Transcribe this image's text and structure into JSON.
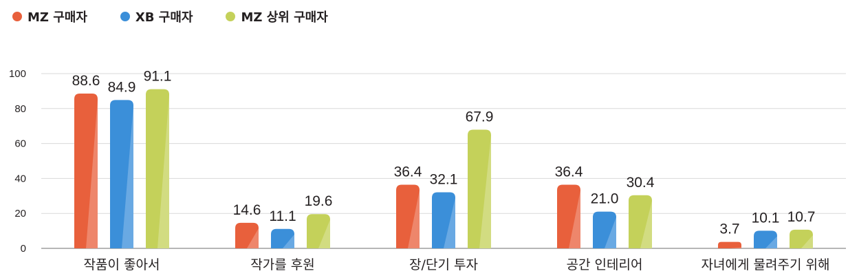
{
  "chart_data": {
    "type": "bar",
    "categories": [
      "작품이 좋아서",
      "작가를 후원",
      "장/단기 투자",
      "공간 인테리어",
      "자녀에게 물려주기 위해"
    ],
    "series": [
      {
        "name": "MZ 구매자",
        "color": "#e8603c",
        "values": [
          88.6,
          14.6,
          36.4,
          36.4,
          3.7
        ],
        "labels": [
          "88.6",
          "14.6",
          "36.4",
          "36.4",
          "3.7"
        ]
      },
      {
        "name": "XB 구매자",
        "color": "#3b8fd9",
        "values": [
          84.9,
          11.1,
          32.1,
          21.0,
          10.1
        ],
        "labels": [
          "84.9",
          "11.1",
          "32.1",
          "21.0",
          "10.1"
        ]
      },
      {
        "name": "MZ 상위 구매자",
        "color": "#c4d15a",
        "values": [
          91.1,
          19.6,
          67.9,
          30.4,
          10.7
        ],
        "labels": [
          "91.1",
          "19.6",
          "67.9",
          "30.4",
          "10.7"
        ]
      }
    ],
    "yticks": [
      "0",
      "20",
      "40",
      "60",
      "80",
      "100"
    ],
    "ylim": [
      0,
      100
    ],
    "grid": true,
    "legend_position": "top-left"
  }
}
